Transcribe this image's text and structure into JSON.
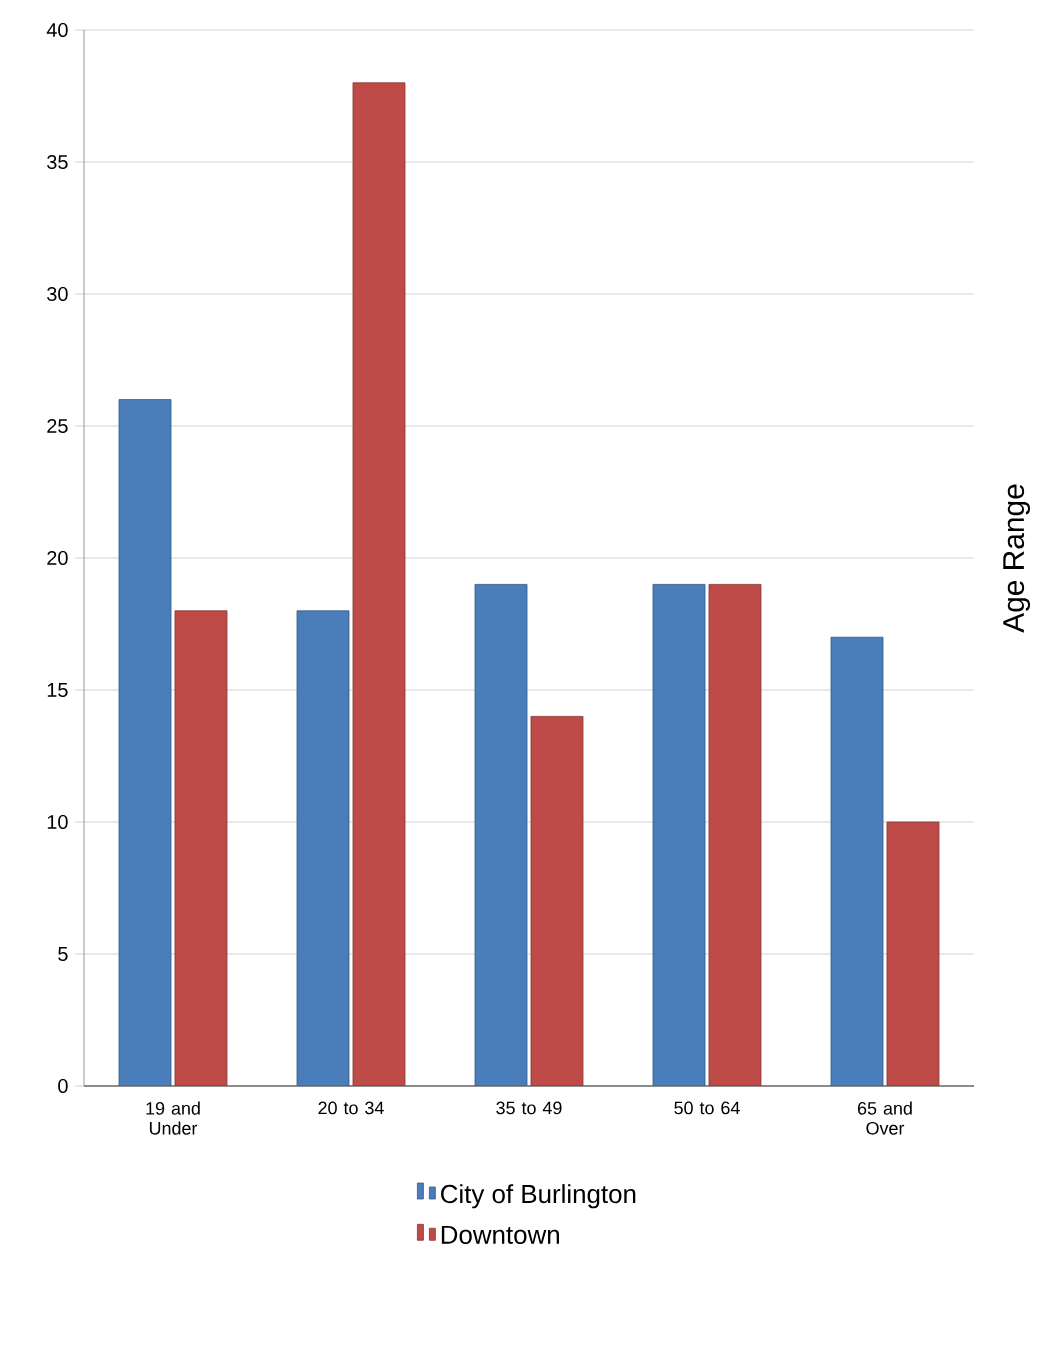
{
  "chart_data": {
    "type": "bar",
    "ylabel": "Age Range",
    "categories": [
      "19 and Under",
      "20 to 34",
      "35 to 49",
      "50 to 64",
      "65 and Over"
    ],
    "series": [
      {
        "name": "City of Burlington",
        "color": "#4a7ebb",
        "values": [
          26,
          18,
          19,
          19,
          17
        ]
      },
      {
        "name": "Downtown",
        "color": "#be4b48",
        "values": [
          18,
          38,
          14,
          19,
          10
        ]
      }
    ],
    "ylim": [
      0,
      40
    ],
    "yticks": [
      0,
      5,
      10,
      15,
      20,
      25,
      30,
      35,
      40
    ],
    "grid": "y",
    "legend": "bottom"
  }
}
